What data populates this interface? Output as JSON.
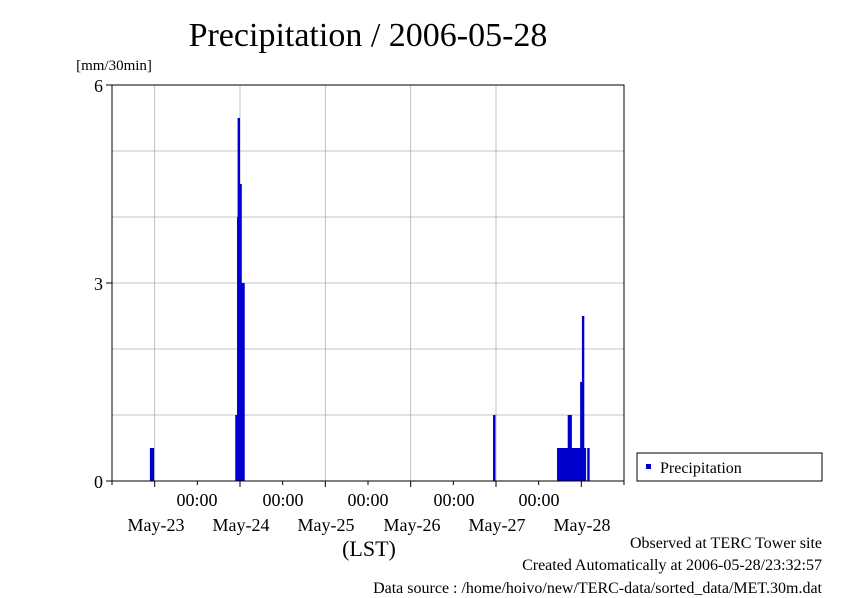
{
  "chart_data": {
    "type": "bar",
    "title": "Precipitation / 2006-05-28",
    "ylabel": "[mm/30min]",
    "xlabel": "(LST)",
    "ylim": [
      0,
      6
    ],
    "yticks": [
      "0",
      "3",
      "6"
    ],
    "xlim": [
      "2006-05-22 12:00",
      "2006-05-28 12:00"
    ],
    "time_labels": [
      "00:00",
      "00:00",
      "00:00",
      "00:00",
      "00:00"
    ],
    "date_labels": [
      "May-23",
      "May-24",
      "May-25",
      "May-26",
      "May-27",
      "May-28"
    ],
    "grid": true,
    "legend_position": "right",
    "series": [
      {
        "name": "Precipitation",
        "color": "#0000cc",
        "points": [
          {
            "x": "2006-05-22 23:00",
            "y": 0.5
          },
          {
            "x": "2006-05-22 23:30",
            "y": 0.5
          },
          {
            "x": "2006-05-23 23:00",
            "y": 1.0
          },
          {
            "x": "2006-05-23 23:30",
            "y": 4.0
          },
          {
            "x": "2006-05-23 23:40",
            "y": 5.5
          },
          {
            "x": "2006-05-23 23:50",
            "y": 4.5
          },
          {
            "x": "2006-05-24 00:00",
            "y": 3.5
          },
          {
            "x": "2006-05-24 00:10",
            "y": 4.5
          },
          {
            "x": "2006-05-24 00:20",
            "y": 1.0
          },
          {
            "x": "2006-05-24 00:30",
            "y": 3.0
          },
          {
            "x": "2006-05-24 01:00",
            "y": 3.0
          },
          {
            "x": "2006-05-26 23:30",
            "y": 1.0
          },
          {
            "x": "2006-05-27 17:30",
            "y": 0.5
          },
          {
            "x": "2006-05-27 18:00",
            "y": 0.5
          },
          {
            "x": "2006-05-27 18:30",
            "y": 0.5
          },
          {
            "x": "2006-05-27 19:00",
            "y": 0.5
          },
          {
            "x": "2006-05-27 19:30",
            "y": 0.5
          },
          {
            "x": "2006-05-27 20:00",
            "y": 0.5
          },
          {
            "x": "2006-05-27 20:30",
            "y": 1.0
          },
          {
            "x": "2006-05-27 21:00",
            "y": 1.0
          },
          {
            "x": "2006-05-27 21:30",
            "y": 0.5
          },
          {
            "x": "2006-05-27 22:00",
            "y": 0.5
          },
          {
            "x": "2006-05-27 22:30",
            "y": 0.5
          },
          {
            "x": "2006-05-27 23:00",
            "y": 0.5
          },
          {
            "x": "2006-05-27 23:30",
            "y": 0.5
          },
          {
            "x": "2006-05-28 00:00",
            "y": 1.5
          },
          {
            "x": "2006-05-28 00:30",
            "y": 2.5
          },
          {
            "x": "2006-05-28 01:00",
            "y": 0.5
          },
          {
            "x": "2006-05-28 02:00",
            "y": 0.5
          }
        ]
      }
    ],
    "legend": [
      "Precipitation"
    ]
  },
  "footer": {
    "observed": "Observed at TERC Tower site",
    "created": "Created Automatically at 2006-05-28/23:32:57",
    "source": "Data source : /home/hoivo/new/TERC-data/sorted_data/MET.30m.dat"
  }
}
